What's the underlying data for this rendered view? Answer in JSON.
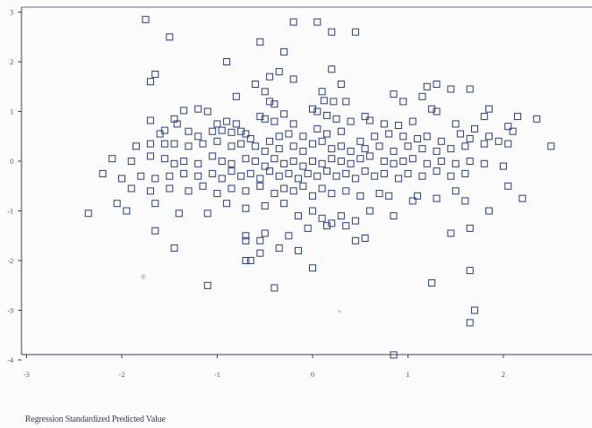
{
  "chart_data": {
    "type": "scatter",
    "title": "",
    "xlabel": "Regression Standardized Predicted Value",
    "ylabel": "",
    "xlim": [
      -3,
      2.9
    ],
    "ylim": [
      -4,
      3.2
    ],
    "xticks": [
      "-3",
      "-2",
      "-1",
      "0",
      "1",
      "2"
    ],
    "yticks": [
      "3",
      "2",
      "1",
      "0",
      "-1",
      "-2",
      "-3",
      "-4"
    ],
    "grid": false,
    "legend": "none",
    "marker": "open-square",
    "color": "#2d3f7a",
    "points": [
      [
        -1.75,
        2.85
      ],
      [
        -1.5,
        2.5
      ],
      [
        -0.2,
        2.8
      ],
      [
        0.05,
        2.8
      ],
      [
        0.2,
        2.6
      ],
      [
        0.45,
        2.6
      ],
      [
        -0.55,
        2.4
      ],
      [
        -0.3,
        2.2
      ],
      [
        -0.9,
        2.0
      ],
      [
        0.2,
        1.85
      ],
      [
        -1.65,
        1.75
      ],
      [
        -1.7,
        1.6
      ],
      [
        -0.6,
        1.55
      ],
      [
        -0.35,
        1.8
      ],
      [
        -0.45,
        1.7
      ],
      [
        -0.2,
        1.65
      ],
      [
        -0.5,
        1.4
      ],
      [
        0.1,
        1.4
      ],
      [
        0.3,
        1.55
      ],
      [
        1.3,
        1.55
      ],
      [
        1.2,
        1.5
      ],
      [
        1.45,
        1.45
      ],
      [
        1.65,
        1.45
      ],
      [
        -0.8,
        1.3
      ],
      [
        -0.45,
        1.2
      ],
      [
        -0.4,
        1.15
      ],
      [
        0.12,
        1.22
      ],
      [
        0.22,
        1.2
      ],
      [
        0.35,
        1.2
      ],
      [
        0.85,
        1.35
      ],
      [
        0.95,
        1.2
      ],
      [
        1.15,
        1.3
      ],
      [
        1.25,
        1.05
      ],
      [
        1.3,
        1.0
      ],
      [
        1.85,
        1.05
      ],
      [
        2.15,
        0.9
      ],
      [
        2.35,
        0.85
      ],
      [
        -1.7,
        0.82
      ],
      [
        -1.45,
        0.85
      ],
      [
        -1.35,
        1.02
      ],
      [
        -1.2,
        1.05
      ],
      [
        -1.1,
        1.0
      ],
      [
        -1.42,
        0.75
      ],
      [
        -1.3,
        0.6
      ],
      [
        -1.0,
        0.75
      ],
      [
        -0.9,
        0.8
      ],
      [
        -0.8,
        0.75
      ],
      [
        -0.7,
        0.55
      ],
      [
        -0.55,
        0.9
      ],
      [
        -0.5,
        0.85
      ],
      [
        -0.4,
        0.8
      ],
      [
        -0.3,
        0.95
      ],
      [
        -0.2,
        0.75
      ],
      [
        0.0,
        1.05
      ],
      [
        0.05,
        1.0
      ],
      [
        0.15,
        0.92
      ],
      [
        0.25,
        0.85
      ],
      [
        0.4,
        0.8
      ],
      [
        0.55,
        0.9
      ],
      [
        0.6,
        0.82
      ],
      [
        0.75,
        0.75
      ],
      [
        0.9,
        0.72
      ],
      [
        1.05,
        0.8
      ],
      [
        1.5,
        0.75
      ],
      [
        1.7,
        0.65
      ],
      [
        1.8,
        0.9
      ],
      [
        2.05,
        0.7
      ],
      [
        2.1,
        0.6
      ],
      [
        -1.55,
        0.62
      ],
      [
        -1.6,
        0.55
      ],
      [
        -1.2,
        0.5
      ],
      [
        -1.05,
        0.6
      ],
      [
        -0.95,
        0.62
      ],
      [
        -0.85,
        0.58
      ],
      [
        -0.75,
        0.6
      ],
      [
        -0.65,
        0.45
      ],
      [
        -0.45,
        0.4
      ],
      [
        -0.35,
        0.5
      ],
      [
        -0.25,
        0.55
      ],
      [
        -0.1,
        0.5
      ],
      [
        0.05,
        0.65
      ],
      [
        0.15,
        0.55
      ],
      [
        0.3,
        0.6
      ],
      [
        0.5,
        0.4
      ],
      [
        0.65,
        0.5
      ],
      [
        0.8,
        0.55
      ],
      [
        0.95,
        0.5
      ],
      [
        1.1,
        0.45
      ],
      [
        1.2,
        0.5
      ],
      [
        1.35,
        0.4
      ],
      [
        1.55,
        0.55
      ],
      [
        1.65,
        0.45
      ],
      [
        1.85,
        0.5
      ],
      [
        1.95,
        0.4
      ],
      [
        2.05,
        0.35
      ],
      [
        2.5,
        0.3
      ],
      [
        -1.85,
        0.3
      ],
      [
        -1.7,
        0.35
      ],
      [
        -1.55,
        0.35
      ],
      [
        -1.45,
        0.35
      ],
      [
        -1.3,
        0.3
      ],
      [
        -1.15,
        0.35
      ],
      [
        -1.0,
        0.4
      ],
      [
        -0.85,
        0.3
      ],
      [
        -0.75,
        0.35
      ],
      [
        -0.6,
        0.3
      ],
      [
        -0.5,
        0.2
      ],
      [
        -0.35,
        0.25
      ],
      [
        -0.2,
        0.3
      ],
      [
        -0.1,
        0.2
      ],
      [
        0.0,
        0.35
      ],
      [
        0.1,
        0.4
      ],
      [
        0.2,
        0.25
      ],
      [
        0.3,
        0.3
      ],
      [
        0.4,
        0.2
      ],
      [
        0.55,
        0.25
      ],
      [
        0.7,
        0.3
      ],
      [
        0.85,
        0.2
      ],
      [
        1.0,
        0.3
      ],
      [
        1.15,
        0.25
      ],
      [
        1.3,
        0.2
      ],
      [
        1.45,
        0.25
      ],
      [
        1.6,
        0.3
      ],
      [
        1.8,
        0.35
      ],
      [
        -2.1,
        0.05
      ],
      [
        -1.9,
        0.0
      ],
      [
        -1.7,
        0.1
      ],
      [
        -1.55,
        0.05
      ],
      [
        -1.45,
        -0.05
      ],
      [
        -1.35,
        0.0
      ],
      [
        -1.2,
        -0.05
      ],
      [
        -1.05,
        0.1
      ],
      [
        -0.95,
        0.0
      ],
      [
        -0.85,
        -0.05
      ],
      [
        -0.7,
        0.05
      ],
      [
        -0.6,
        0.0
      ],
      [
        -0.5,
        -0.1
      ],
      [
        -0.4,
        0.05
      ],
      [
        -0.3,
        -0.05
      ],
      [
        -0.2,
        0.0
      ],
      [
        -0.1,
        -0.1
      ],
      [
        0.0,
        0.0
      ],
      [
        0.1,
        -0.05
      ],
      [
        0.2,
        0.05
      ],
      [
        0.3,
        0.0
      ],
      [
        0.4,
        -0.05
      ],
      [
        0.5,
        0.05
      ],
      [
        0.6,
        0.1
      ],
      [
        0.75,
        0.0
      ],
      [
        0.85,
        -0.05
      ],
      [
        0.95,
        0.0
      ],
      [
        1.05,
        0.05
      ],
      [
        1.2,
        -0.05
      ],
      [
        1.35,
        0.0
      ],
      [
        1.5,
        -0.05
      ],
      [
        1.65,
        0.0
      ],
      [
        1.8,
        -0.05
      ],
      [
        2.0,
        -0.1
      ],
      [
        -2.2,
        -0.25
      ],
      [
        -2.0,
        -0.35
      ],
      [
        -1.8,
        -0.3
      ],
      [
        -1.65,
        -0.35
      ],
      [
        -1.5,
        -0.3
      ],
      [
        -1.35,
        -0.25
      ],
      [
        -1.2,
        -0.3
      ],
      [
        -1.05,
        -0.25
      ],
      [
        -0.95,
        -0.35
      ],
      [
        -0.85,
        -0.2
      ],
      [
        -0.75,
        -0.3
      ],
      [
        -0.65,
        -0.25
      ],
      [
        -0.55,
        -0.35
      ],
      [
        -0.45,
        -0.2
      ],
      [
        -0.35,
        -0.3
      ],
      [
        -0.25,
        -0.25
      ],
      [
        -0.15,
        -0.35
      ],
      [
        -0.05,
        -0.25
      ],
      [
        0.05,
        -0.3
      ],
      [
        0.15,
        -0.2
      ],
      [
        0.25,
        -0.3
      ],
      [
        0.35,
        -0.25
      ],
      [
        0.45,
        -0.35
      ],
      [
        0.55,
        -0.2
      ],
      [
        0.65,
        -0.3
      ],
      [
        0.75,
        -0.25
      ],
      [
        0.9,
        -0.35
      ],
      [
        1.0,
        -0.25
      ],
      [
        1.15,
        -0.3
      ],
      [
        1.3,
        -0.2
      ],
      [
        1.45,
        -0.3
      ],
      [
        1.6,
        -0.25
      ],
      [
        -1.9,
        -0.55
      ],
      [
        -1.7,
        -0.6
      ],
      [
        -1.5,
        -0.55
      ],
      [
        -1.3,
        -0.6
      ],
      [
        -1.15,
        -0.5
      ],
      [
        -1.0,
        -0.65
      ],
      [
        -0.85,
        -0.55
      ],
      [
        -0.7,
        -0.6
      ],
      [
        -0.55,
        -0.5
      ],
      [
        -0.4,
        -0.65
      ],
      [
        -0.3,
        -0.55
      ],
      [
        -0.2,
        -0.6
      ],
      [
        -0.1,
        -0.5
      ],
      [
        0.0,
        -0.7
      ],
      [
        0.1,
        -0.55
      ],
      [
        0.2,
        -0.65
      ],
      [
        0.35,
        -0.6
      ],
      [
        0.5,
        -0.7
      ],
      [
        0.7,
        -0.65
      ],
      [
        0.8,
        -0.7
      ],
      [
        1.1,
        -0.7
      ],
      [
        1.3,
        -0.75
      ],
      [
        1.5,
        -0.6
      ],
      [
        2.05,
        -0.5
      ],
      [
        2.2,
        -0.75
      ],
      [
        -2.35,
        -1.05
      ],
      [
        -2.05,
        -0.85
      ],
      [
        -1.95,
        -1.0
      ],
      [
        -1.65,
        -0.85
      ],
      [
        -1.4,
        -1.05
      ],
      [
        -1.1,
        -1.05
      ],
      [
        -0.9,
        -0.85
      ],
      [
        -0.7,
        -0.95
      ],
      [
        -0.5,
        -0.9
      ],
      [
        -0.3,
        -0.85
      ],
      [
        -0.15,
        -1.1
      ],
      [
        0.0,
        -1.0
      ],
      [
        0.1,
        -1.15
      ],
      [
        0.2,
        -1.25
      ],
      [
        0.3,
        -1.1
      ],
      [
        0.45,
        -1.2
      ],
      [
        0.6,
        -1.0
      ],
      [
        0.85,
        -1.1
      ],
      [
        1.05,
        -0.8
      ],
      [
        1.6,
        -0.8
      ],
      [
        1.85,
        -1.0
      ],
      [
        -1.65,
        -1.4
      ],
      [
        -0.7,
        -1.5
      ],
      [
        -0.5,
        -1.45
      ],
      [
        -0.25,
        -1.5
      ],
      [
        -0.05,
        -1.35
      ],
      [
        0.15,
        -1.3
      ],
      [
        0.35,
        -1.3
      ],
      [
        0.45,
        -1.6
      ],
      [
        0.55,
        -1.55
      ],
      [
        1.45,
        -1.45
      ],
      [
        1.65,
        -1.35
      ],
      [
        -1.45,
        -1.75
      ],
      [
        -0.7,
        -1.6
      ],
      [
        -0.55,
        -1.6
      ],
      [
        -0.35,
        -1.75
      ],
      [
        -0.7,
        -2.0
      ],
      [
        -0.65,
        -2.0
      ],
      [
        -0.55,
        -1.85
      ],
      [
        -0.15,
        -1.8
      ],
      [
        0.0,
        -2.15
      ],
      [
        1.65,
        -2.2
      ],
      [
        -1.1,
        -2.5
      ],
      [
        -0.4,
        -2.55
      ],
      [
        1.25,
        -2.45
      ],
      [
        1.7,
        -3.0
      ],
      [
        1.65,
        -3.25
      ],
      [
        0.85,
        -3.9
      ]
    ]
  }
}
